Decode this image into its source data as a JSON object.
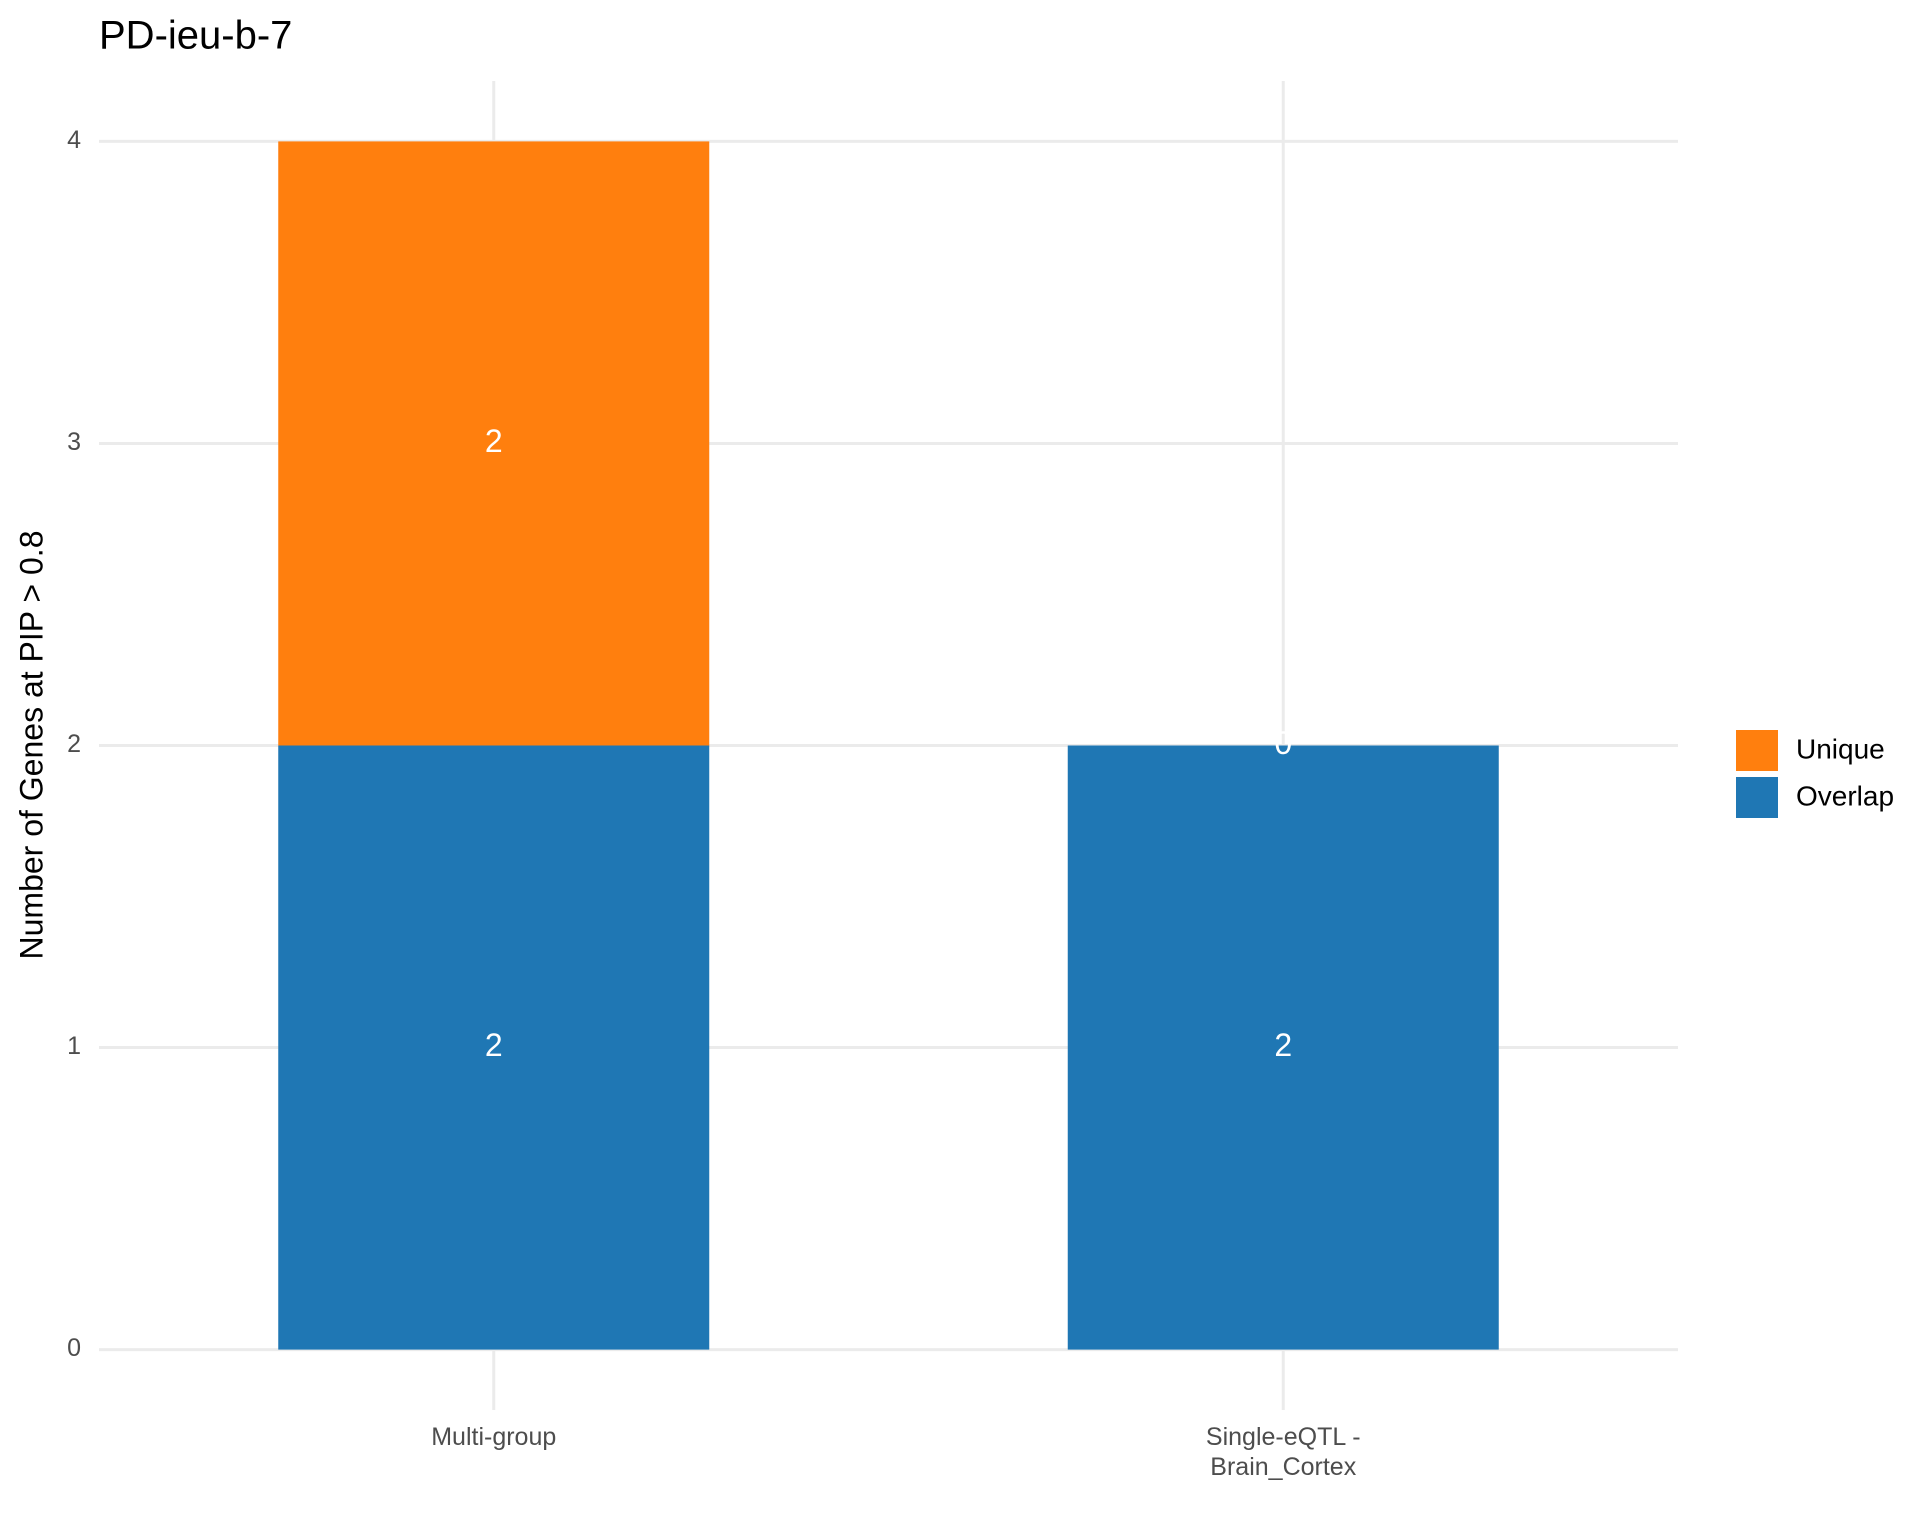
{
  "chart_data": {
    "type": "stacked_bar",
    "title": "PD-ieu-b-7",
    "y_label": "Number of Genes at PIP > 0.8",
    "categories": [
      "Multi-group",
      "Single-eQTL -\nBrain_Cortex"
    ],
    "series": [
      {
        "name": "Overlap",
        "color": "#1f77b4",
        "values": [
          2,
          2
        ]
      },
      {
        "name": "Unique",
        "color": "#ff7f0e",
        "values": [
          2,
          0
        ]
      }
    ],
    "ylim": [
      -0.2,
      4.2
    ],
    "yticks": [
      0,
      1,
      2,
      3,
      4
    ],
    "grid": true,
    "legend": "right"
  }
}
